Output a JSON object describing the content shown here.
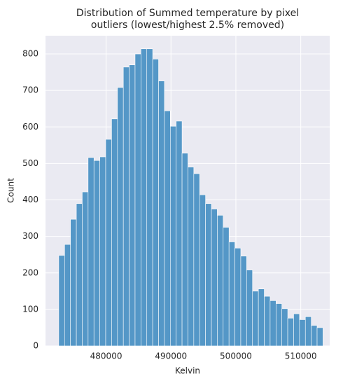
{
  "chart_data": {
    "type": "histogram",
    "title": [
      "Distribution of Summed temperature by pixel",
      "outliers (lowest/highest 2.5% removed)"
    ],
    "xlabel": "Kelvin",
    "ylabel": "Count",
    "bins": [
      472700,
      473605,
      474510,
      475415,
      476320,
      477225,
      478130,
      479035,
      479940,
      480845,
      481750,
      482655,
      483560,
      484465,
      485370,
      486275,
      487180,
      488085,
      488990,
      489895,
      490800,
      491705,
      492610,
      493515,
      494420,
      495325,
      496230,
      497135,
      498040,
      498945,
      499850,
      500755,
      501660,
      502565,
      503470,
      504375,
      505280,
      506185,
      507090,
      507995,
      508900,
      509805,
      510710,
      511615,
      512520,
      513425
    ],
    "values": [
      248,
      278,
      347,
      390,
      422,
      516,
      508,
      518,
      566,
      622,
      708,
      764,
      770,
      800,
      814,
      814,
      786,
      726,
      644,
      602,
      616,
      528,
      490,
      472,
      414,
      390,
      375,
      358,
      325,
      285,
      268,
      246,
      208,
      150,
      156,
      136,
      124,
      116,
      102,
      76,
      88,
      72,
      80,
      56,
      50
    ],
    "color": "#5497c7",
    "xlim": [
      470660,
      514460
    ],
    "ylim": [
      0,
      850
    ],
    "xticks": [
      480000,
      490000,
      500000,
      510000
    ],
    "yticks": [
      0,
      100,
      200,
      300,
      400,
      500,
      600,
      700,
      800
    ],
    "grid": true
  }
}
